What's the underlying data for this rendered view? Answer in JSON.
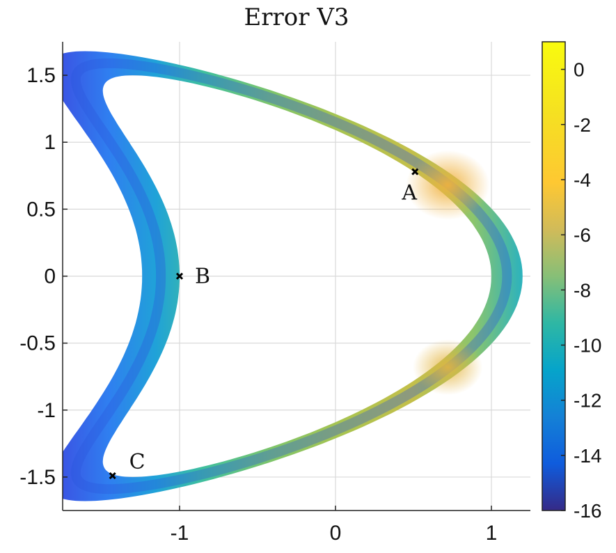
{
  "chart_data": {
    "type": "heatmap",
    "title": "Error V3",
    "xlabel": "",
    "ylabel": "",
    "xlim": [
      -1.75,
      1.25
    ],
    "ylim": [
      -1.75,
      1.75
    ],
    "xticks": [
      -1,
      0,
      1
    ],
    "xtick_labels": [
      "-1",
      "0",
      "1"
    ],
    "yticks": [
      1.5,
      1,
      0.5,
      0,
      -0.5,
      -1,
      -1.5
    ],
    "ytick_labels": [
      "1.5",
      "1",
      "0.5",
      "0",
      "-0.5",
      "-1",
      "-1.5"
    ],
    "grid": true,
    "colorbar": {
      "range": [
        -16,
        1
      ],
      "ticks": [
        0,
        -2,
        -4,
        -6,
        -8,
        -10,
        -12,
        -14,
        -16
      ],
      "tick_labels": [
        "0",
        "-2",
        "-4",
        "-6",
        "-8",
        "-10",
        "-12",
        "-14",
        "-16"
      ],
      "colormap": "parula"
    },
    "points": [
      {
        "label": "A",
        "x": 0.51,
        "y": 0.78
      },
      {
        "label": "B",
        "x": -1.0,
        "y": 0.0
      },
      {
        "label": "C",
        "x": -1.43,
        "y": -1.49
      }
    ]
  }
}
